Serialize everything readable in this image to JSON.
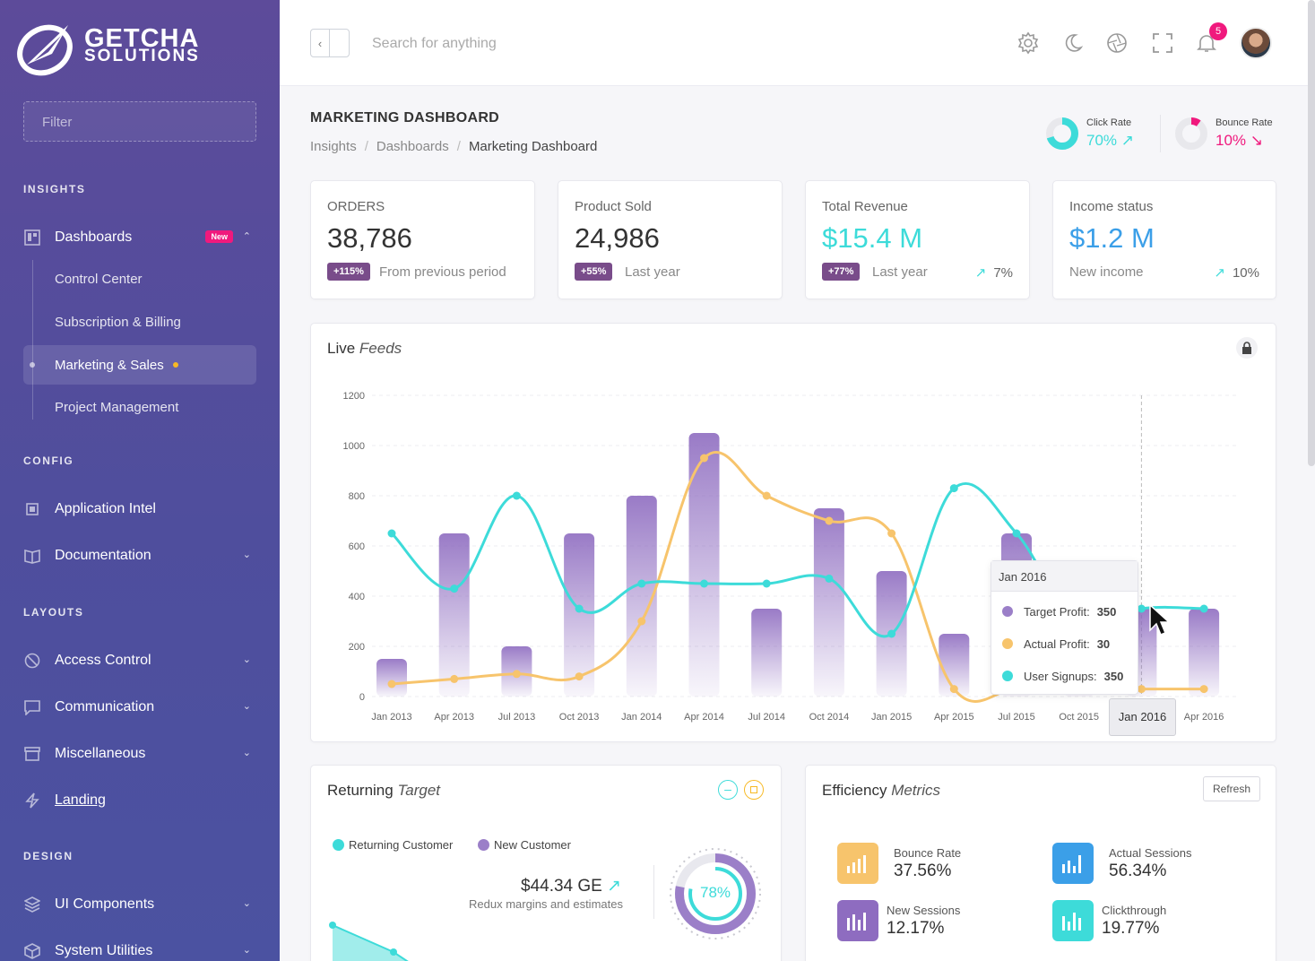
{
  "brand": {
    "line1": "GETCHA",
    "line2": "SOLUTIONS"
  },
  "sidebar": {
    "filter_placeholder": "Filter",
    "sections": {
      "insights": "INSIGHTS",
      "config": "CONFIG",
      "layouts": "LAYOUTS",
      "design": "DESIGN"
    },
    "items": {
      "dashboards": "Dashboards",
      "dashboards_badge": "New",
      "app_intel": "Application Intel",
      "documentation": "Documentation",
      "access_control": "Access Control",
      "communication": "Communication",
      "misc": "Miscellaneous",
      "landing": "Landing",
      "ui_components": "UI Components",
      "system_utilities": "System Utilities"
    },
    "subitems": {
      "control_center": "Control Center",
      "subscription": "Subscription & Billing",
      "marketing": "Marketing & Sales",
      "project": "Project Management"
    }
  },
  "topbar": {
    "search_placeholder": "Search for anything",
    "notifications_count": "5"
  },
  "page": {
    "title": "MARKETING DASHBOARD",
    "breadcrumb": {
      "b1": "Insights",
      "b2": "Dashboards",
      "b3": "Marketing Dashboard",
      "sep": "/"
    }
  },
  "mini_stats": {
    "click": {
      "label": "Click Rate",
      "value": "70%",
      "fraction": 0.7,
      "color": "#3ddbd9"
    },
    "bounce": {
      "label": "Bounce Rate",
      "value": "10%",
      "fraction": 0.1,
      "color": "#f0197d"
    }
  },
  "kpis": {
    "orders": {
      "title": "ORDERS",
      "value": "38,786",
      "pill": "+115%",
      "sub": "From previous period"
    },
    "sold": {
      "title": "Product Sold",
      "value": "24,986",
      "pill": "+55%",
      "sub": "Last year"
    },
    "revenue": {
      "title": "Total Revenue",
      "value": "$15.4 M",
      "pill": "+77%",
      "sub": "Last year",
      "trend": "7%"
    },
    "income": {
      "title": "Income status",
      "value": "$1.2 M",
      "sub": "New income",
      "trend": "10%"
    }
  },
  "live_feeds": {
    "title_a": "Live",
    "title_b": "Feeds",
    "tooltip": {
      "date": "Jan 2016",
      "r1_label": "Target Profit:",
      "r1_value": "350",
      "r2_label": "Actual Profit:",
      "r2_value": "30",
      "r3_label": "User Signups:",
      "r3_value": "350"
    },
    "xtip": "Jan 2016"
  },
  "chart_data": {
    "type": "bar",
    "categories": [
      "Jan 2013",
      "Apr 2013",
      "Jul 2013",
      "Oct 2013",
      "Jan 2014",
      "Apr 2014",
      "Jul 2014",
      "Oct 2014",
      "Jan 2015",
      "Apr 2015",
      "Jul 2015",
      "Oct 2015",
      "Jan 2016",
      "Apr 2016"
    ],
    "ylim": [
      0,
      1200
    ],
    "yticks": [
      0,
      200,
      400,
      600,
      800,
      1000,
      1200
    ],
    "grid": true,
    "series": [
      {
        "name": "Target Profit",
        "type": "bar",
        "color": "#8e6cc0",
        "values": [
          150,
          650,
          200,
          650,
          800,
          1050,
          350,
          750,
          500,
          250,
          650,
          500,
          350,
          350
        ]
      },
      {
        "name": "Actual Profit",
        "type": "line",
        "color": "#f7c46c",
        "values": [
          50,
          70,
          90,
          80,
          300,
          950,
          800,
          700,
          650,
          30,
          30,
          30,
          30,
          30
        ]
      },
      {
        "name": "User Signups",
        "type": "line",
        "color": "#3ddbd9",
        "values": [
          650,
          430,
          800,
          350,
          450,
          450,
          450,
          470,
          250,
          830,
          650,
          280,
          350,
          350
        ]
      }
    ]
  },
  "returning": {
    "title_a": "Returning",
    "title_b": "Target",
    "legend1": "Returning Customer",
    "legend2": "New Customer",
    "amount": "$44.34 GE",
    "amount_sub": "Redux margins and estimates",
    "gauge": "78%",
    "gauge_fraction": 0.78
  },
  "efficiency": {
    "title_a": "Efficiency",
    "title_b": "Metrics",
    "refresh": "Refresh",
    "items": {
      "bounce": {
        "label": "Bounce Rate",
        "value": "37.56%",
        "color": "#f7c46c"
      },
      "actual": {
        "label": "Actual Sessions",
        "value": "56.34%",
        "color": "#3b9fe8"
      },
      "new": {
        "label": "New Sessions",
        "value": "12.17%",
        "color": "#8e6cc0"
      },
      "click": {
        "label": "Clickthrough",
        "value": "19.77%",
        "color": "#3ddbd9"
      }
    }
  }
}
